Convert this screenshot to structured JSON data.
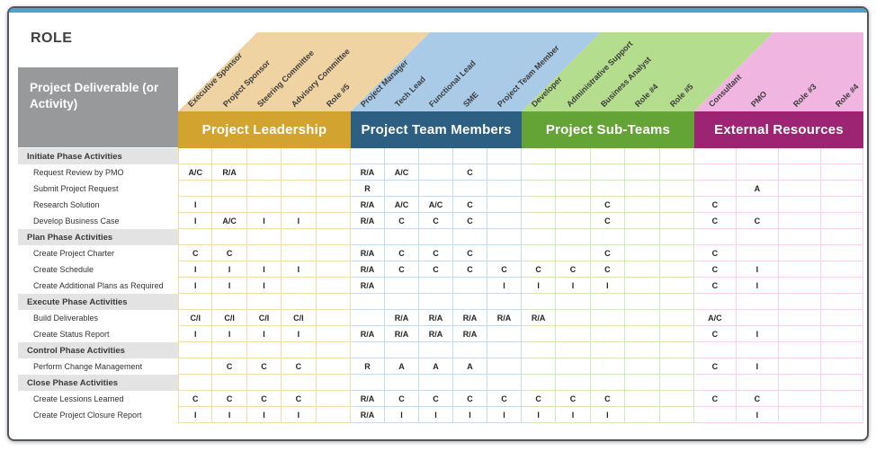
{
  "window": {
    "corner_title": "ROLE",
    "row_header_title": "Project Deliverable (or Activity)"
  },
  "palette": {
    "top_strip": "#4BA1D0",
    "row_header_bg": "#98999B",
    "section_row_bg": "#E3E3E3",
    "cell_text": "#262626"
  },
  "groups": [
    {
      "name": "Project Leadership",
      "band_color": "#D2A42F",
      "diagonal_color": "#F0D3A2",
      "grid_color": "#F3DCAB",
      "columns": [
        "Executive Sponsor",
        "Project Sponsor",
        "Steering Committee",
        "Advisory Committee",
        "Role #5"
      ]
    },
    {
      "name": "Project Team Members",
      "band_color": "#2C5F82",
      "diagonal_color": "#A9CBE7",
      "grid_color": "#C4DDF0",
      "columns": [
        "Project Manager",
        "Tech Lead",
        "Functional Lead",
        "SME",
        "Project Team Member"
      ]
    },
    {
      "name": "Project Sub-Teams",
      "band_color": "#64A437",
      "diagonal_color": "#B4DE8D",
      "grid_color": "#CFEABB",
      "columns": [
        "Developer",
        "Administrative Support",
        "Business Analyst",
        "Role #4",
        "Role #5"
      ]
    },
    {
      "name": "External Resources",
      "band_color": "#9D2473",
      "diagonal_color": "#F0B5E0",
      "grid_color": "#F7D3ED",
      "columns": [
        "Consultant",
        "PMO",
        "Role #3",
        "Role #4"
      ]
    }
  ],
  "rows": [
    {
      "type": "section",
      "label": "Initiate Phase Activities"
    },
    {
      "type": "data",
      "label": "Request Review by PMO",
      "cells": [
        "A/C",
        "R/A",
        "",
        "",
        "",
        "R/A",
        "A/C",
        "",
        "C",
        "",
        "",
        "",
        "",
        "",
        "",
        "",
        "",
        "",
        ""
      ]
    },
    {
      "type": "data",
      "label": "Submit Project Request",
      "cells": [
        "",
        "",
        "",
        "",
        "",
        "R",
        "",
        "",
        "",
        "",
        "",
        "",
        "",
        "",
        "",
        "",
        "A",
        "",
        ""
      ]
    },
    {
      "type": "data",
      "label": "Research Solution",
      "cells": [
        "I",
        "",
        "",
        "",
        "",
        "R/A",
        "A/C",
        "A/C",
        "C",
        "",
        "",
        "",
        "C",
        "",
        "",
        "C",
        "",
        "",
        ""
      ]
    },
    {
      "type": "data",
      "label": "Develop Business Case",
      "cells": [
        "I",
        "A/C",
        "I",
        "I",
        "",
        "R/A",
        "C",
        "C",
        "C",
        "",
        "",
        "",
        "C",
        "",
        "",
        "C",
        "C",
        "",
        ""
      ]
    },
    {
      "type": "section",
      "label": "Plan Phase Activities"
    },
    {
      "type": "data",
      "label": "Create Project Charter",
      "cells": [
        "C",
        "C",
        "",
        "",
        "",
        "R/A",
        "C",
        "C",
        "C",
        "",
        "",
        "",
        "C",
        "",
        "",
        "C",
        "",
        "",
        ""
      ]
    },
    {
      "type": "data",
      "label": "Create Schedule",
      "cells": [
        "I",
        "I",
        "I",
        "I",
        "",
        "R/A",
        "C",
        "C",
        "C",
        "C",
        "C",
        "C",
        "C",
        "",
        "",
        "C",
        "I",
        "",
        ""
      ]
    },
    {
      "type": "data",
      "label": "Create Additional Plans as Required",
      "cells": [
        "I",
        "I",
        "I",
        "",
        "",
        "R/A",
        "",
        "",
        "",
        "I",
        "I",
        "I",
        "I",
        "",
        "",
        "C",
        "I",
        "",
        ""
      ]
    },
    {
      "type": "section",
      "label": "Execute Phase Activities"
    },
    {
      "type": "data",
      "label": "Build Deliverables",
      "cells": [
        "C/I",
        "C/I",
        "C/I",
        "C/I",
        "",
        "",
        "R/A",
        "R/A",
        "R/A",
        "R/A",
        "R/A",
        "",
        "",
        "",
        "",
        "A/C",
        "",
        "",
        ""
      ]
    },
    {
      "type": "data",
      "label": "Create Status Report",
      "cells": [
        "I",
        "I",
        "I",
        "I",
        "",
        "R/A",
        "R/A",
        "R/A",
        "R/A",
        "",
        "",
        "",
        "",
        "",
        "",
        "C",
        "I",
        "",
        ""
      ]
    },
    {
      "type": "section",
      "label": "Control Phase Activities"
    },
    {
      "type": "data",
      "label": "Perform Change Management",
      "cells": [
        "",
        "C",
        "C",
        "C",
        "",
        "R",
        "A",
        "A",
        "A",
        "",
        "",
        "",
        "",
        "",
        "",
        "C",
        "I",
        "",
        ""
      ]
    },
    {
      "type": "section",
      "label": "Close Phase Activities"
    },
    {
      "type": "data",
      "label": "Create Lessions Learned",
      "cells": [
        "C",
        "C",
        "C",
        "C",
        "",
        "R/A",
        "C",
        "C",
        "C",
        "C",
        "C",
        "C",
        "C",
        "",
        "",
        "C",
        "C",
        "",
        ""
      ]
    },
    {
      "type": "data",
      "label": "Create Project Closure Report",
      "cells": [
        "I",
        "I",
        "I",
        "I",
        "",
        "R/A",
        "I",
        "I",
        "I",
        "I",
        "I",
        "I",
        "I",
        "",
        "",
        "",
        "I",
        "",
        ""
      ]
    }
  ]
}
